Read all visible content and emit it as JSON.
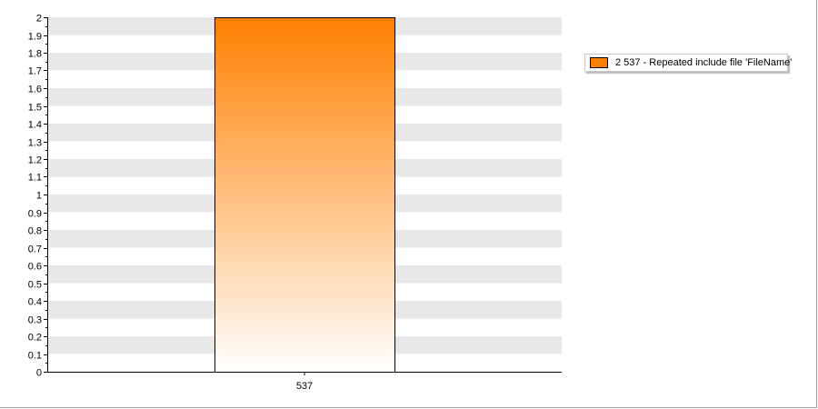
{
  "chart_data": {
    "type": "bar",
    "categories": [
      "537"
    ],
    "series": [
      {
        "name": "2 537 - Repeated include file 'FileName'",
        "values": [
          2
        ]
      }
    ],
    "ylim": [
      0,
      2
    ],
    "ytick_step": 0.1,
    "yticks": [
      "0",
      "0.1",
      "0.2",
      "0.3",
      "0.4",
      "0.5",
      "0.6",
      "0.7",
      "0.8",
      "0.9",
      "1",
      "1.1",
      "1.2",
      "1.3",
      "1.4",
      "1.5",
      "1.6",
      "1.7",
      "1.8",
      "1.9",
      "2"
    ],
    "grid": "alternating-horizontal-bands",
    "legend_position": "right",
    "colors": {
      "bar_top": "#ff8000",
      "bar_bottom": "#ffffff",
      "band": "#e8e8e8",
      "axis": "#000000"
    }
  },
  "legend": {
    "label": "2 537 - Repeated include file 'FileName'"
  }
}
